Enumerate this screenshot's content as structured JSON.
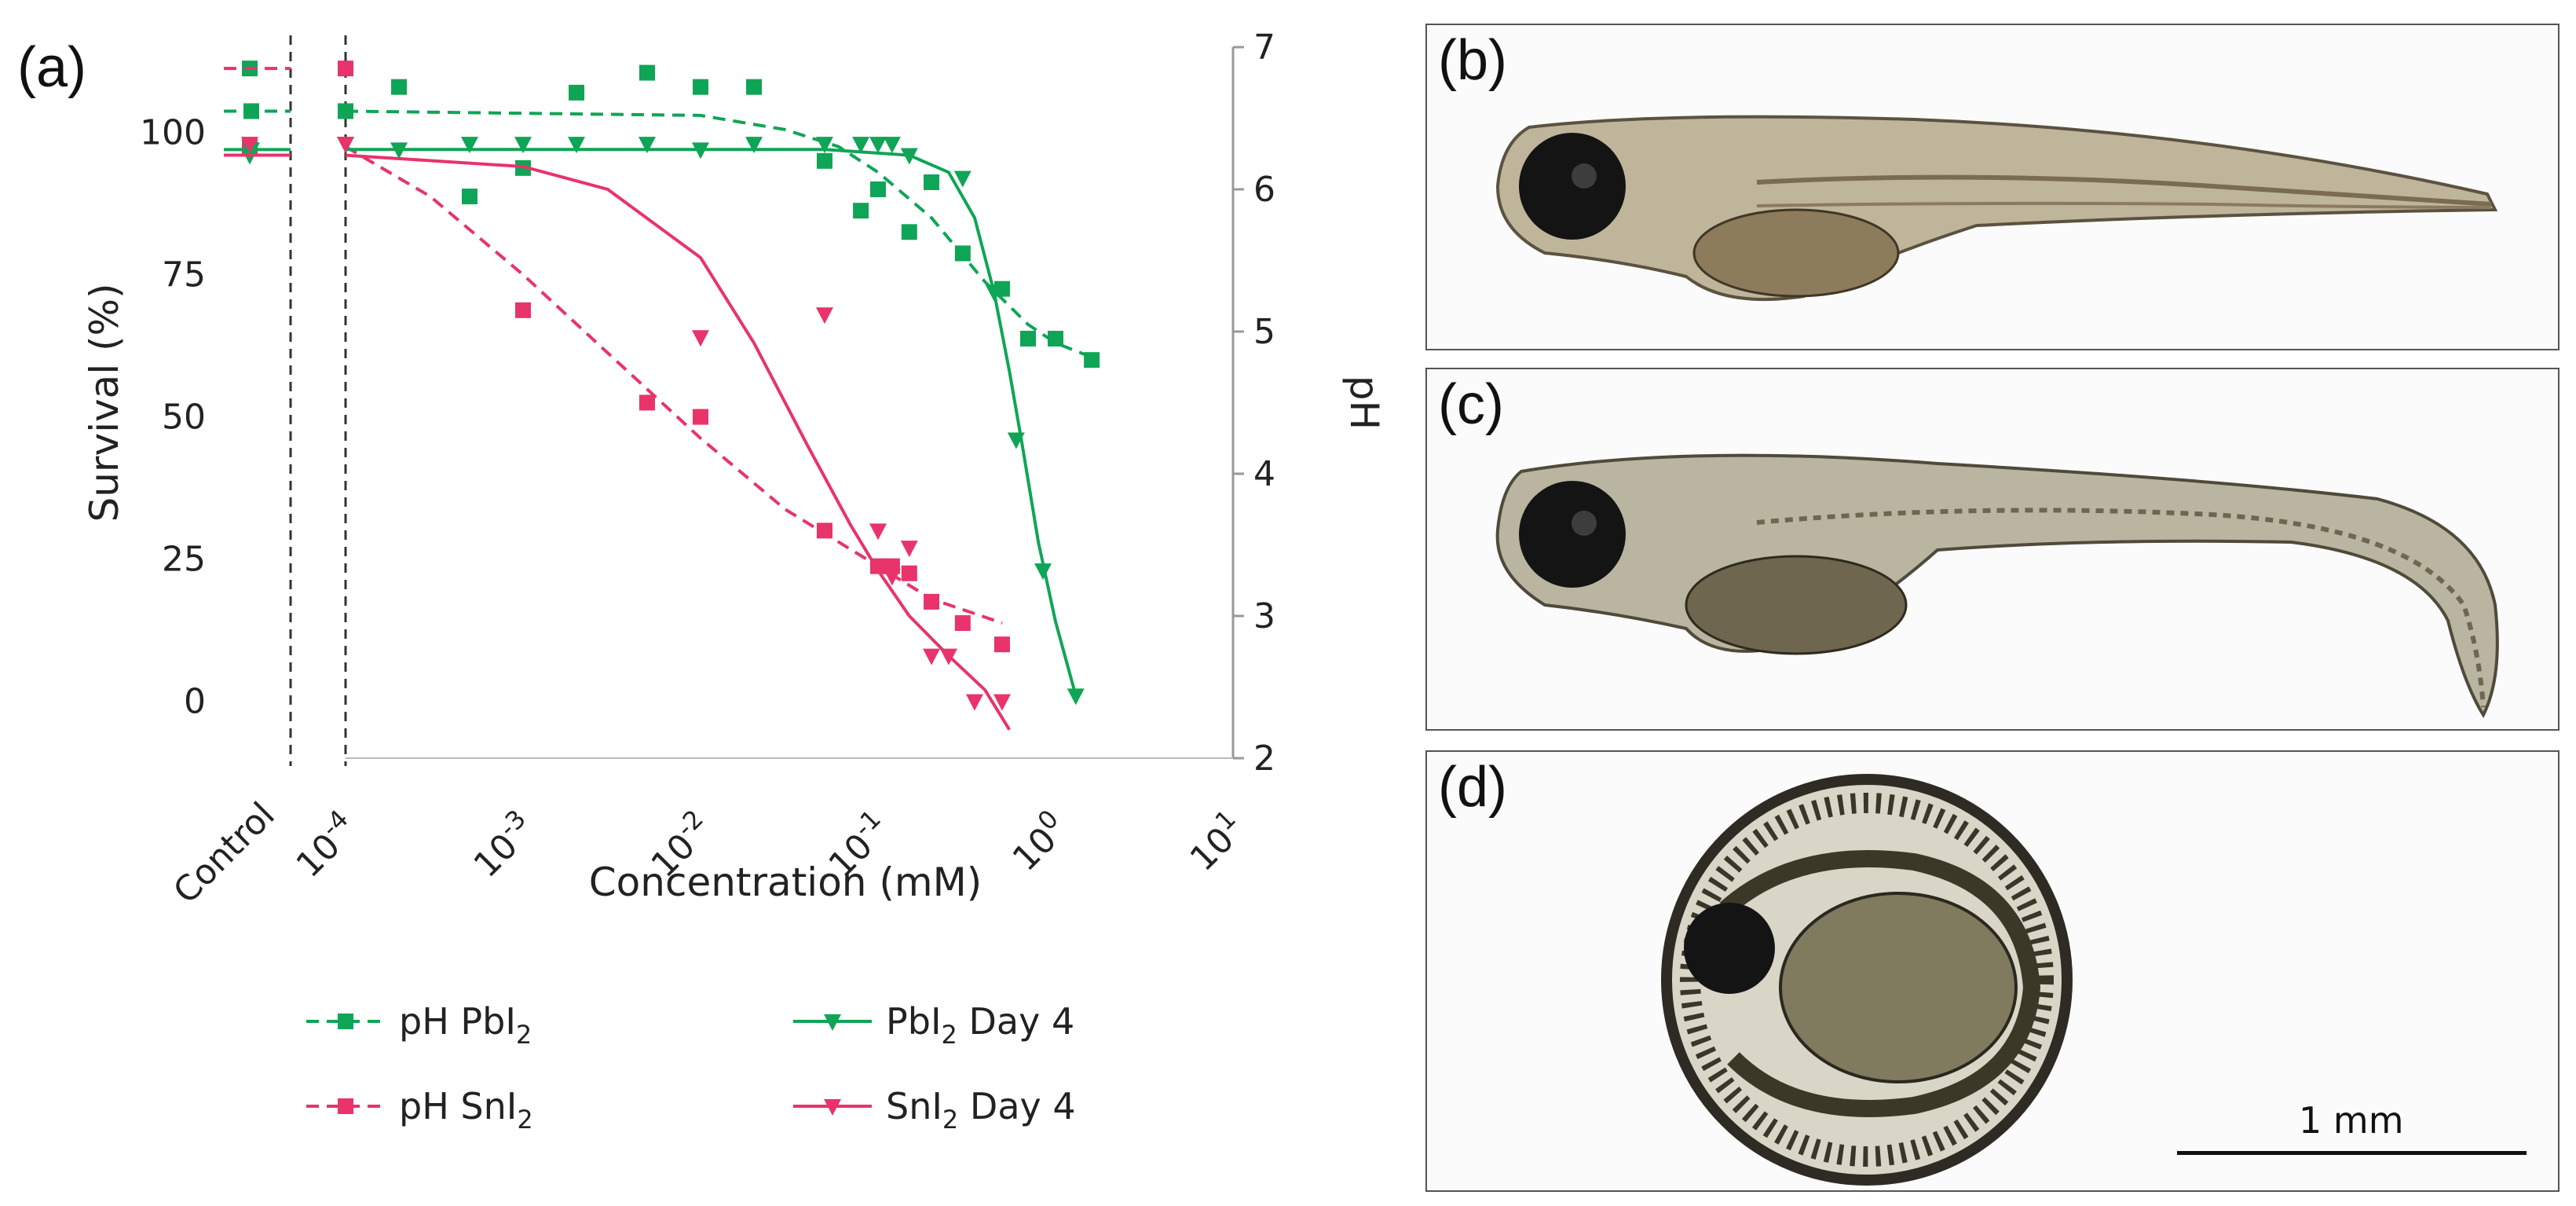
{
  "figure": {
    "panel_a_label": "(a)",
    "panel_b_label": "(b)",
    "panel_c_label": "(c)",
    "panel_d_label": "(d)",
    "scale_bar_label": "1 mm"
  },
  "chart_data": {
    "type": "line",
    "xscale": "log",
    "xlabel": "Concentration (mM)",
    "ylabel": "Survival (%)",
    "y2label": "pH",
    "xlim": [
      0.0001,
      10
    ],
    "ylim": [
      -10,
      115
    ],
    "y2lim": [
      2,
      7
    ],
    "x_ticks": [
      {
        "value": 0.0001,
        "base": "10",
        "exp": "-4"
      },
      {
        "value": 0.001,
        "base": "10",
        "exp": "-3"
      },
      {
        "value": 0.01,
        "base": "10",
        "exp": "-2"
      },
      {
        "value": 0.1,
        "base": "10",
        "exp": "-1"
      },
      {
        "value": 1,
        "base": "10",
        "exp": "0"
      },
      {
        "value": 10,
        "base": "10",
        "exp": "1"
      }
    ],
    "control_label": "Control",
    "y_ticks": [
      0,
      25,
      50,
      75,
      100
    ],
    "y2_ticks": [
      2,
      3,
      4,
      5,
      6,
      7
    ],
    "colors": {
      "pb": "#0fa556",
      "sn": "#e8336b"
    },
    "legend": [
      {
        "id": "pH_PbI2",
        "prefix": "pH PbI",
        "sub": "2",
        "suffix": "",
        "color": "#0fa556",
        "dashed": true,
        "marker": "square"
      },
      {
        "id": "PbI2_day4",
        "prefix": "PbI",
        "sub": "2",
        "suffix": " Day 4",
        "color": "#0fa556",
        "dashed": false,
        "marker": "triangle"
      },
      {
        "id": "pH_SnI2",
        "prefix": "pH SnI",
        "sub": "2",
        "suffix": "",
        "color": "#e8336b",
        "dashed": true,
        "marker": "square"
      },
      {
        "id": "SnI2_day4",
        "prefix": "SnI",
        "sub": "2",
        "suffix": " Day 4",
        "color": "#e8336b",
        "dashed": false,
        "marker": "triangle"
      }
    ],
    "series": [
      {
        "id": "pH_PbI2",
        "name": "pH PbI2",
        "axis": "pH",
        "color": "#0fa556",
        "dashed": true,
        "marker": "square",
        "control_points": [
          6.85,
          6.55
        ],
        "control_curve": 6.55,
        "points": [
          [
            0.0001,
            6.55
          ],
          [
            0.0002,
            6.72
          ],
          [
            0.0005,
            5.95
          ],
          [
            0.001,
            6.15
          ],
          [
            0.002,
            6.68
          ],
          [
            0.005,
            6.82
          ],
          [
            0.01,
            6.72
          ],
          [
            0.02,
            6.72
          ],
          [
            0.05,
            6.2
          ],
          [
            0.08,
            5.85
          ],
          [
            0.1,
            6.0
          ],
          [
            0.15,
            5.7
          ],
          [
            0.2,
            6.05
          ],
          [
            0.3,
            5.55
          ],
          [
            0.5,
            5.3
          ],
          [
            0.7,
            4.95
          ],
          [
            1.0,
            4.95
          ],
          [
            1.6,
            4.8
          ]
        ],
        "curve": [
          [
            0.0001,
            6.55
          ],
          [
            0.01,
            6.52
          ],
          [
            0.03,
            6.42
          ],
          [
            0.06,
            6.3
          ],
          [
            0.1,
            6.12
          ],
          [
            0.2,
            5.8
          ],
          [
            0.4,
            5.35
          ],
          [
            0.7,
            5.05
          ],
          [
            1.0,
            4.92
          ],
          [
            1.6,
            4.82
          ]
        ]
      },
      {
        "id": "pH_SnI2",
        "name": "pH SnI2",
        "axis": "pH",
        "color": "#e8336b",
        "dashed": true,
        "marker": "square",
        "control_points": [
          6.3
        ],
        "control_curve": 6.85,
        "points": [
          [
            0.0001,
            6.85
          ],
          [
            0.001,
            5.15
          ],
          [
            0.005,
            4.5
          ],
          [
            0.01,
            4.4
          ],
          [
            0.05,
            3.6
          ],
          [
            0.1,
            3.35
          ],
          [
            0.12,
            3.35
          ],
          [
            0.15,
            3.3
          ],
          [
            0.2,
            3.1
          ],
          [
            0.3,
            2.95
          ],
          [
            0.5,
            2.8
          ]
        ],
        "curve": [
          [
            0.0001,
            6.3
          ],
          [
            0.0003,
            5.95
          ],
          [
            0.001,
            5.4
          ],
          [
            0.003,
            4.85
          ],
          [
            0.01,
            4.25
          ],
          [
            0.03,
            3.75
          ],
          [
            0.1,
            3.35
          ],
          [
            0.2,
            3.12
          ],
          [
            0.5,
            2.95
          ]
        ]
      },
      {
        "id": "PbI2_day4",
        "name": "PbI2 Day 4",
        "axis": "survival",
        "color": "#0fa556",
        "dashed": false,
        "marker": "triangle",
        "control_points": [
          96,
          97
        ],
        "control_curve": 97,
        "points": [
          [
            0.0001,
            98
          ],
          [
            0.0002,
            97
          ],
          [
            0.0005,
            98
          ],
          [
            0.001,
            98
          ],
          [
            0.002,
            98
          ],
          [
            0.005,
            98
          ],
          [
            0.01,
            97
          ],
          [
            0.02,
            98
          ],
          [
            0.05,
            98
          ],
          [
            0.08,
            98
          ],
          [
            0.1,
            98
          ],
          [
            0.12,
            98
          ],
          [
            0.15,
            96
          ],
          [
            0.3,
            92
          ],
          [
            0.45,
            72
          ],
          [
            0.6,
            46
          ],
          [
            0.85,
            23
          ],
          [
            1.3,
            1
          ]
        ],
        "curve": [
          [
            0.0001,
            97
          ],
          [
            0.05,
            97
          ],
          [
            0.15,
            96
          ],
          [
            0.25,
            93
          ],
          [
            0.35,
            85
          ],
          [
            0.45,
            72
          ],
          [
            0.55,
            58
          ],
          [
            0.65,
            45
          ],
          [
            0.8,
            28
          ],
          [
            1.0,
            14
          ],
          [
            1.3,
            1
          ]
        ]
      },
      {
        "id": "SnI2_day4",
        "name": "SnI2 Day 4",
        "axis": "survival",
        "color": "#e8336b",
        "dashed": false,
        "marker": "triangle",
        "control_points": [
          98
        ],
        "control_curve": 96,
        "points": [
          [
            0.0001,
            98
          ],
          [
            0.01,
            64
          ],
          [
            0.05,
            68
          ],
          [
            0.1,
            30
          ],
          [
            0.12,
            22
          ],
          [
            0.15,
            27
          ],
          [
            0.2,
            8
          ],
          [
            0.25,
            8
          ],
          [
            0.35,
            0
          ],
          [
            0.5,
            0
          ]
        ],
        "curve": [
          [
            0.0001,
            96
          ],
          [
            0.001,
            94
          ],
          [
            0.003,
            90
          ],
          [
            0.01,
            78
          ],
          [
            0.02,
            63
          ],
          [
            0.04,
            45
          ],
          [
            0.07,
            31
          ],
          [
            0.1,
            23
          ],
          [
            0.15,
            15
          ],
          [
            0.25,
            8
          ],
          [
            0.4,
            2
          ],
          [
            0.55,
            -5
          ]
        ]
      }
    ]
  }
}
